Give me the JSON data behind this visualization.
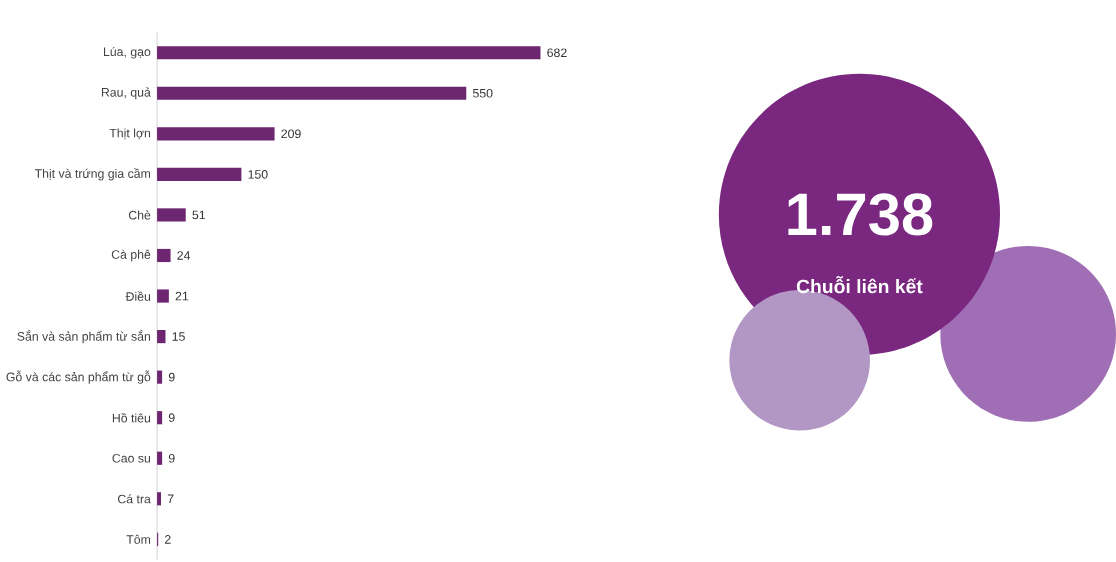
{
  "chart_data": {
    "type": "bar",
    "orientation": "horizontal",
    "data_labels": true,
    "color": "#6d2670",
    "categories": [
      "Lúa, gạo",
      "Rau, quả",
      "Thịt lợn",
      "Thịt và trứng gia cầm",
      "Chè",
      "Cà phê",
      "Điều",
      "Sắn và sản phẩm từ sắn",
      "Gỗ và các sản phẩm từ gỗ",
      "Hồ tiêu",
      "Cao su",
      "Cá tra",
      "Tôm"
    ],
    "values": [
      682,
      550,
      209,
      150,
      51,
      24,
      21,
      15,
      9,
      9,
      9,
      7,
      2
    ],
    "annotations": [
      "1.738",
      "Chuỗi liên kết"
    ]
  }
}
